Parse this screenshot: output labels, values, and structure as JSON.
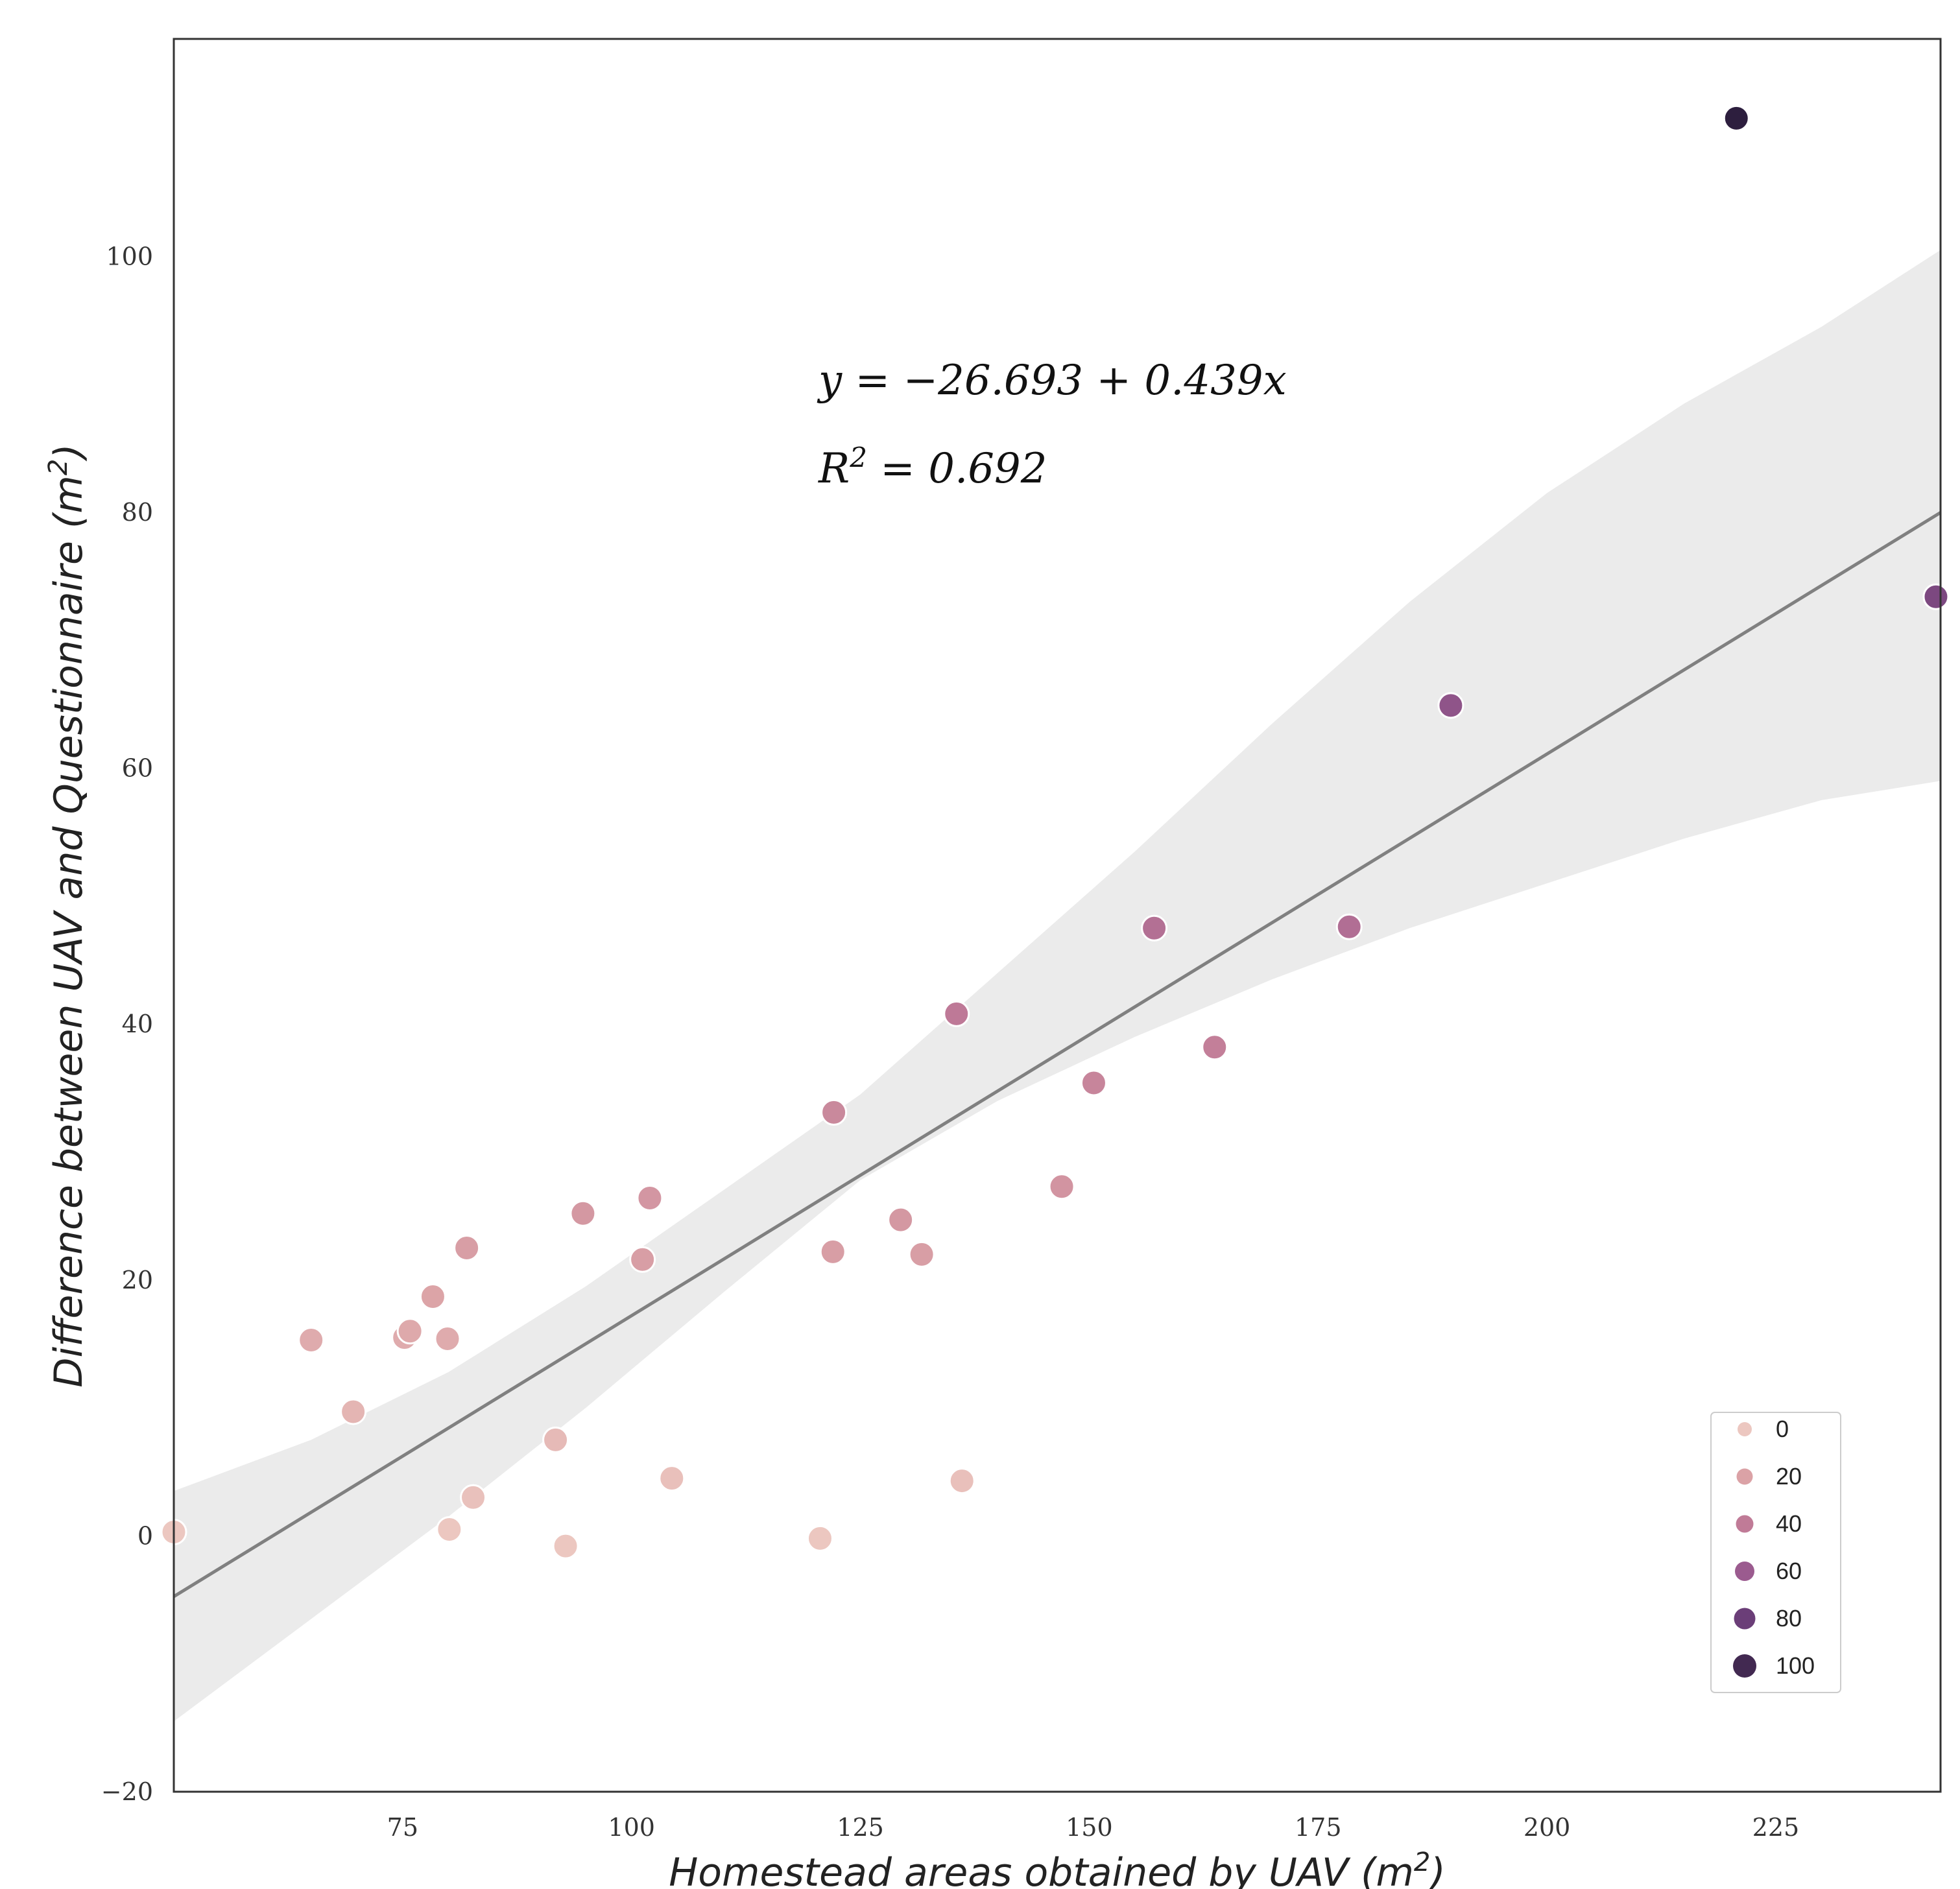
{
  "chart_data": {
    "type": "scatter",
    "title": "",
    "xlabel": "Homestead areas obtained by UAV (m",
    "xlabel_sup": "2",
    "xlabel_close": ")",
    "ylabel": "Difference between UAV and Questionnaire (m",
    "ylabel_sup": "2",
    "ylabel_close": ")",
    "xlim": [
      50,
      243
    ],
    "ylim": [
      -20,
      117
    ],
    "xticks": [
      75,
      100,
      125,
      150,
      175,
      200,
      225
    ],
    "yticks": [
      -20,
      0,
      20,
      40,
      60,
      80,
      100
    ],
    "ytick_labels": [
      "−20",
      "0",
      "20",
      "40",
      "60",
      "80",
      "100"
    ],
    "grid": false,
    "regression": {
      "intercept": -26.693,
      "slope": 0.439,
      "equation_text": "y = −26.693 + 0.439x",
      "r2_prefix": "R",
      "r2_sup": "2",
      "r2_text": " = 0.692",
      "line_color": "#808080",
      "band_color": "#ebebeb",
      "band": [
        {
          "x": 50,
          "lo": -14.5,
          "hi": 3.5
        },
        {
          "x": 65,
          "lo": -6.5,
          "hi": 7.5
        },
        {
          "x": 80,
          "lo": 1.5,
          "hi": 12.8
        },
        {
          "x": 95,
          "lo": 10.0,
          "hi": 19.5
        },
        {
          "x": 110,
          "lo": 19.0,
          "hi": 27.0
        },
        {
          "x": 125,
          "lo": 27.8,
          "hi": 34.5
        },
        {
          "x": 140,
          "lo": 34.0,
          "hi": 44.0
        },
        {
          "x": 155,
          "lo": 39.0,
          "hi": 53.5
        },
        {
          "x": 170,
          "lo": 43.5,
          "hi": 63.5
        },
        {
          "x": 185,
          "lo": 47.5,
          "hi": 73.0
        },
        {
          "x": 200,
          "lo": 51.0,
          "hi": 81.5
        },
        {
          "x": 215,
          "lo": 54.5,
          "hi": 88.5
        },
        {
          "x": 230,
          "lo": 57.5,
          "hi": 94.5
        },
        {
          "x": 243,
          "lo": 59.0,
          "hi": 100.5
        }
      ]
    },
    "points": [
      {
        "x": 50,
        "y": 0.3,
        "hue": 0
      },
      {
        "x": 65,
        "y": 15.3,
        "hue": 15
      },
      {
        "x": 69.6,
        "y": 9.7,
        "hue": 10
      },
      {
        "x": 75.2,
        "y": 15.5,
        "hue": 15
      },
      {
        "x": 75.8,
        "y": 16.0,
        "hue": 16
      },
      {
        "x": 78.3,
        "y": 18.7,
        "hue": 19
      },
      {
        "x": 79.9,
        "y": 15.4,
        "hue": 15
      },
      {
        "x": 80.1,
        "y": 0.5,
        "hue": 0
      },
      {
        "x": 82.0,
        "y": 22.5,
        "hue": 22
      },
      {
        "x": 82.7,
        "y": 3.0,
        "hue": 3
      },
      {
        "x": 91.7,
        "y": 7.5,
        "hue": 7
      },
      {
        "x": 92.8,
        "y": -0.8,
        "hue": 0
      },
      {
        "x": 94.7,
        "y": 25.2,
        "hue": 25
      },
      {
        "x": 101.2,
        "y": 21.6,
        "hue": 22
      },
      {
        "x": 102.0,
        "y": 26.4,
        "hue": 26
      },
      {
        "x": 104.4,
        "y": 4.5,
        "hue": 4
      },
      {
        "x": 120.6,
        "y": -0.2,
        "hue": 0
      },
      {
        "x": 122.0,
        "y": 22.2,
        "hue": 22
      },
      {
        "x": 122.1,
        "y": 33.1,
        "hue": 33
      },
      {
        "x": 129.4,
        "y": 24.7,
        "hue": 25
      },
      {
        "x": 131.7,
        "y": 22.0,
        "hue": 22
      },
      {
        "x": 135.5,
        "y": 40.8,
        "hue": 41
      },
      {
        "x": 136.1,
        "y": 4.3,
        "hue": 4
      },
      {
        "x": 147.0,
        "y": 27.3,
        "hue": 27
      },
      {
        "x": 150.5,
        "y": 35.4,
        "hue": 35
      },
      {
        "x": 157.1,
        "y": 47.5,
        "hue": 47
      },
      {
        "x": 163.7,
        "y": 38.2,
        "hue": 38
      },
      {
        "x": 178.4,
        "y": 47.6,
        "hue": 48
      },
      {
        "x": 189.5,
        "y": 64.9,
        "hue": 65
      },
      {
        "x": 220.7,
        "y": 110.8,
        "hue": 111
      },
      {
        "x": 242.5,
        "y": 73.4,
        "hue": 73
      }
    ],
    "legend": {
      "placement": "lower-right",
      "entries": [
        {
          "label": "0",
          "hue": 0
        },
        {
          "label": "20",
          "hue": 20
        },
        {
          "label": "40",
          "hue": 40
        },
        {
          "label": "60",
          "hue": 60
        },
        {
          "label": "80",
          "hue": 80
        },
        {
          "label": "100",
          "hue": 100
        }
      ]
    },
    "palette": [
      "#ecc7c0",
      "#dba2a6",
      "#c07b97",
      "#9b5b8f",
      "#6b3e78",
      "#2d1e3e"
    ],
    "palette_stops": [
      0,
      20,
      40,
      60,
      80,
      110
    ]
  }
}
